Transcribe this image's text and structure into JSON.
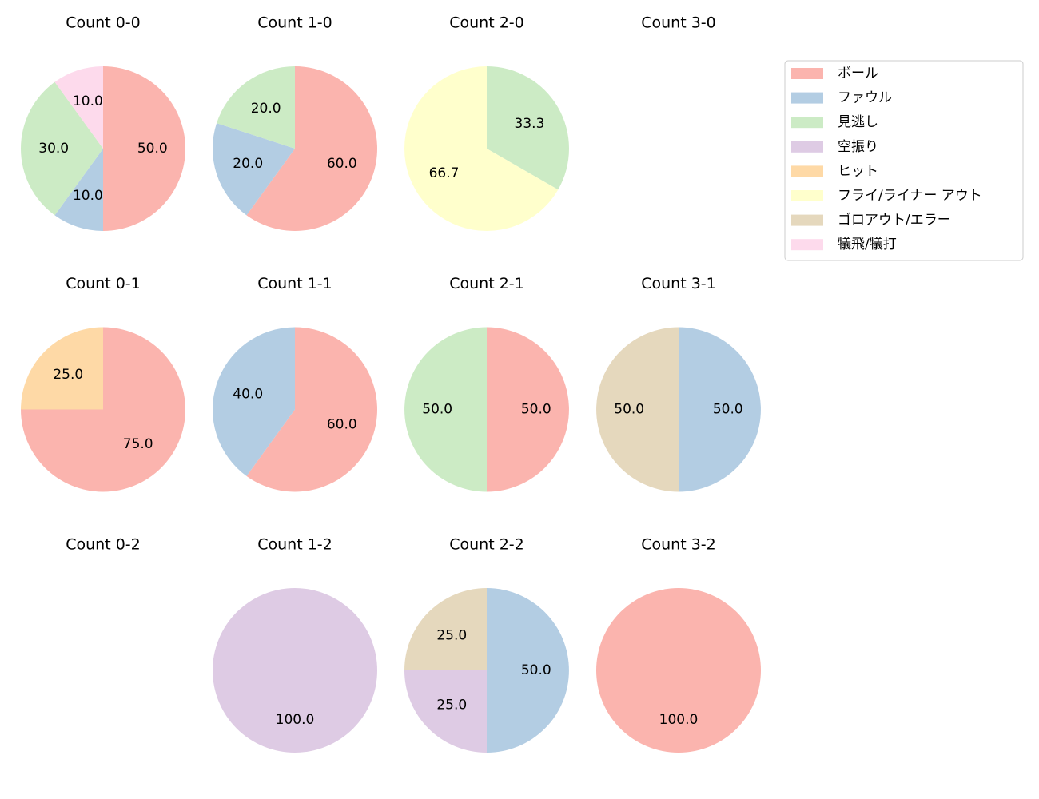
{
  "chart_data": [
    {
      "type": "pie",
      "title": "Count 0-0",
      "categories": [
        "ボール",
        "ファウル",
        "見逃し",
        "犠飛/犠打"
      ],
      "values": [
        50,
        10,
        30,
        10
      ],
      "value_labels": [
        "50.0",
        "10.0",
        "30.0",
        "10.0"
      ]
    },
    {
      "type": "pie",
      "title": "Count 1-0",
      "categories": [
        "ボール",
        "ファウル",
        "見逃し"
      ],
      "values": [
        60,
        20,
        20
      ],
      "value_labels": [
        "60.0",
        "20.0",
        "20.0"
      ]
    },
    {
      "type": "pie",
      "title": "Count 2-0",
      "categories": [
        "見逃し",
        "フライ/ライナー アウト"
      ],
      "values": [
        33.3,
        66.7
      ]
    },
    {
      "type": "pie",
      "title": "Count 3-0",
      "categories": [],
      "values": []
    },
    {
      "type": "pie",
      "title": "Count 0-1",
      "categories": [
        "ボール",
        "ヒット"
      ],
      "values": [
        75,
        25
      ],
      "value_labels": [
        "75.0",
        "25.0"
      ]
    },
    {
      "type": "pie",
      "title": "Count 1-1",
      "categories": [
        "ボール",
        "ファウル"
      ],
      "values": [
        60,
        40
      ],
      "value_labels": [
        "60.0",
        "40.0"
      ]
    },
    {
      "type": "pie",
      "title": "Count 2-1",
      "categories": [
        "ボール",
        "見逃し"
      ],
      "values": [
        50,
        50
      ],
      "value_labels": [
        "50.0",
        "50.0"
      ]
    },
    {
      "type": "pie",
      "title": "Count 3-1",
      "categories": [
        "ファウル",
        "ゴロアウト/エラー"
      ],
      "values": [
        50,
        50
      ],
      "value_labels": [
        "50.0",
        "50.0"
      ]
    },
    {
      "type": "pie",
      "title": "Count 0-2",
      "categories": [],
      "values": []
    },
    {
      "type": "pie",
      "title": "Count 1-2",
      "categories": [
        "空振り"
      ],
      "values": [
        100
      ],
      "value_labels": [
        "100.0"
      ]
    },
    {
      "type": "pie",
      "title": "Count 2-2",
      "categories": [
        "ファウル",
        "空振り",
        "ゴロアウト/エラー"
      ],
      "values": [
        50,
        25,
        25
      ],
      "value_labels": [
        "50.0",
        "25.0",
        "25.0"
      ]
    },
    {
      "type": "pie",
      "title": "Count 3-2",
      "categories": [
        "ボール"
      ],
      "values": [
        100
      ],
      "value_labels": [
        "100.0"
      ]
    }
  ],
  "legend": {
    "labels": [
      "ボール",
      "ファウル",
      "見逃し",
      "空振り",
      "ヒット",
      "フライ/ライナー アウト",
      "ゴロアウト/エラー",
      "犠飛/犠打"
    ],
    "colors": [
      "#fbb4ae",
      "#b3cde3",
      "#ccebc5",
      "#decbe4",
      "#fed9a6",
      "#ffffcc",
      "#e5d8bd",
      "#fddaec"
    ]
  }
}
